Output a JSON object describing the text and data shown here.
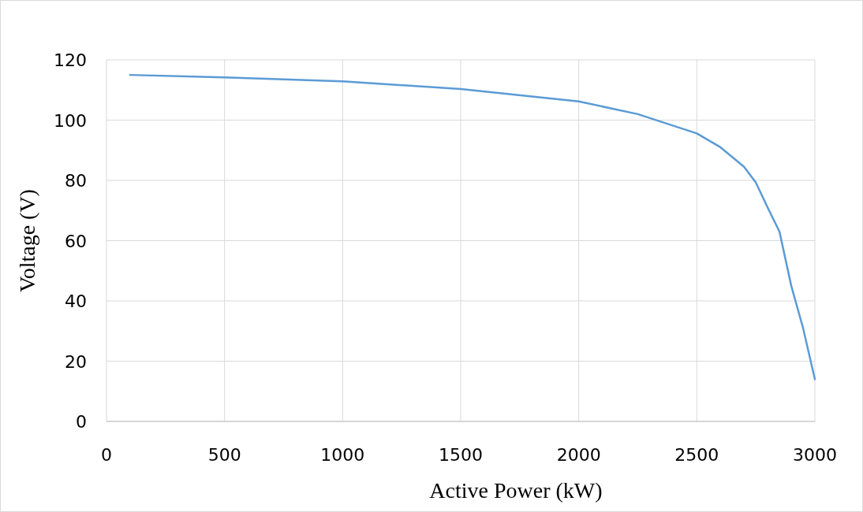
{
  "chart_data": {
    "type": "line",
    "xlabel": "Active Power (kW)",
    "ylabel": "Voltage (V)",
    "series": [
      {
        "color": "#5b9bd5",
        "x": [
          100,
          500,
          1000,
          1500,
          2000,
          2250,
          2500,
          2600,
          2700,
          2750,
          2800,
          2850,
          2900,
          2950,
          3000
        ],
        "values": [
          115,
          114.2,
          112.9,
          110.3,
          106.2,
          102,
          95.6,
          91,
          84.5,
          79.3,
          71,
          63,
          45,
          31,
          14
        ]
      }
    ],
    "xlim": [
      0,
      3000
    ],
    "xticks": [
      0,
      500,
      1000,
      1500,
      2000,
      2500,
      3000
    ],
    "ylim": [
      0,
      120
    ],
    "yticks": [
      0,
      20,
      40,
      60,
      80,
      100,
      120
    ],
    "grid": true,
    "marker": "none",
    "line_style": "solid"
  }
}
